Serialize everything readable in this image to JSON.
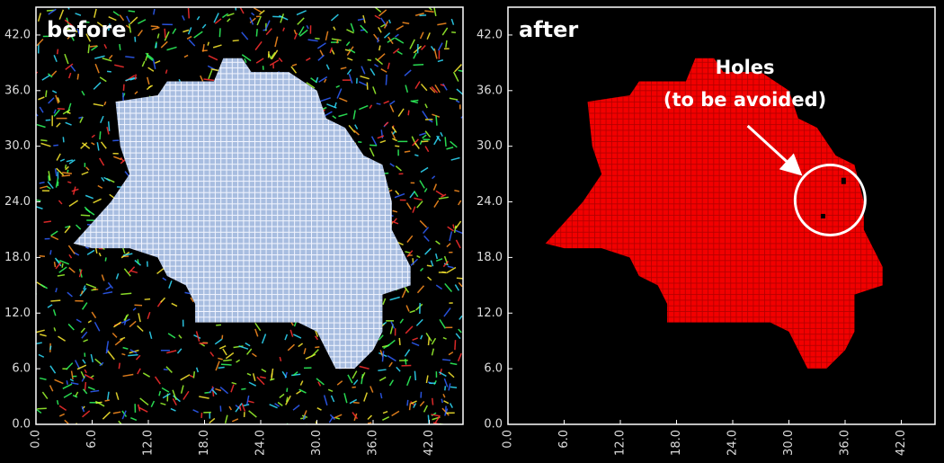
{
  "panels": [
    {
      "label": "before",
      "xlim": [
        0,
        45.6
      ],
      "ylim": [
        0,
        45
      ],
      "xticks": [
        {
          "value": 0,
          "label": "0.0"
        },
        {
          "value": 6,
          "label": "6.0"
        },
        {
          "value": 12,
          "label": "12.0"
        },
        {
          "value": 18,
          "label": "18.0"
        },
        {
          "value": 24,
          "label": "24.0"
        },
        {
          "value": 30,
          "label": "30.0"
        },
        {
          "value": 36,
          "label": "36.0"
        },
        {
          "value": 42,
          "label": "42.0"
        }
      ],
      "yticks": [
        {
          "value": 0,
          "label": "0.0"
        },
        {
          "value": 6,
          "label": "6.0"
        },
        {
          "value": 12,
          "label": "12.0"
        },
        {
          "value": 18,
          "label": "18.0"
        },
        {
          "value": 24,
          "label": "24.0"
        },
        {
          "value": 30,
          "label": "30.0"
        },
        {
          "value": 36,
          "label": "36.0"
        },
        {
          "value": 42,
          "label": "42.0"
        }
      ]
    },
    {
      "label": "after",
      "xlim": [
        0,
        45.6
      ],
      "ylim": [
        0,
        45
      ],
      "xticks": [
        {
          "value": 0,
          "label": "0.0"
        },
        {
          "value": 6,
          "label": "6.0"
        },
        {
          "value": 12,
          "label": "12.0"
        },
        {
          "value": 18,
          "label": "18.0"
        },
        {
          "value": 24,
          "label": "24.0"
        },
        {
          "value": 30,
          "label": "30.0"
        },
        {
          "value": 36,
          "label": "36.0"
        },
        {
          "value": 42,
          "label": "42.0"
        }
      ],
      "yticks": [
        {
          "value": 0,
          "label": "0.0"
        },
        {
          "value": 6,
          "label": "6.0"
        },
        {
          "value": 12,
          "label": "12.0"
        },
        {
          "value": 18,
          "label": "18.0"
        },
        {
          "value": 24,
          "label": "24.0"
        },
        {
          "value": 30,
          "label": "30.0"
        },
        {
          "value": 36,
          "label": "36.0"
        },
        {
          "value": 42,
          "label": "42.0"
        }
      ],
      "annotation": [
        "Holes",
        "(to be avoided)"
      ]
    }
  ]
}
